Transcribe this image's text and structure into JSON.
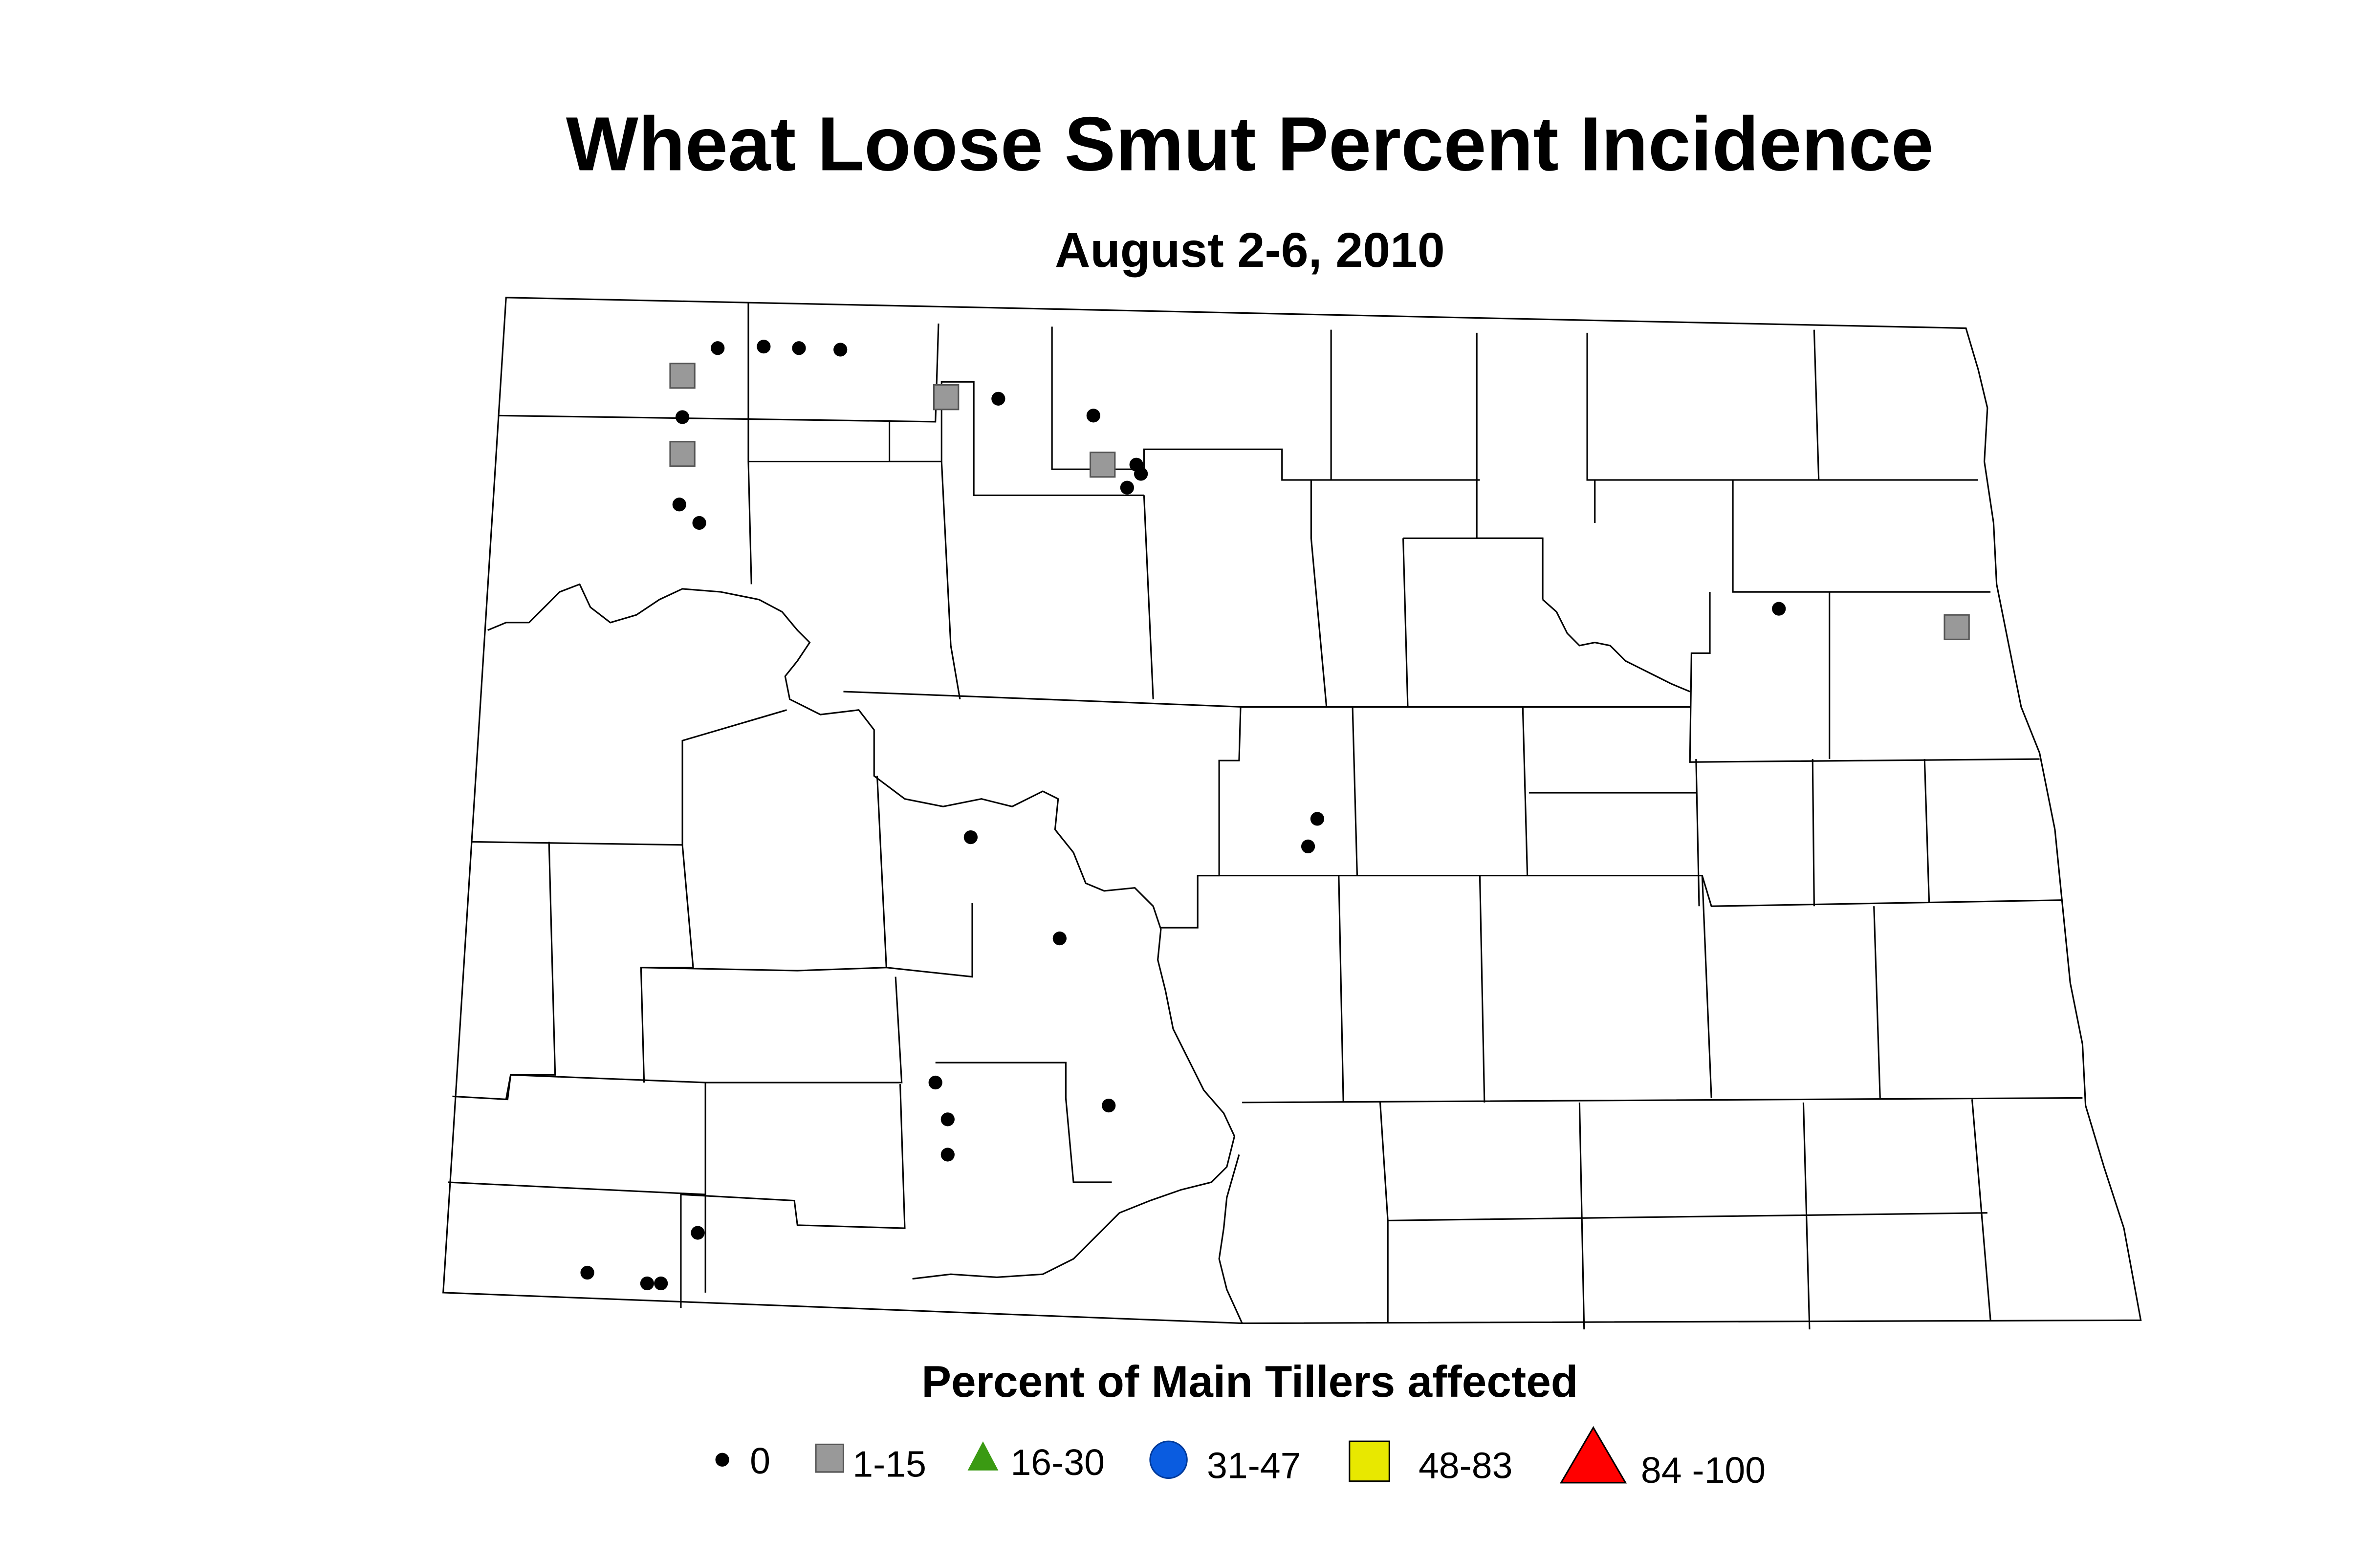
{
  "title": "Wheat Loose Smut Percent Incidence",
  "subtitle": "August 2-6, 2010",
  "legend": {
    "title": "Percent of Main Tillers affected",
    "items": [
      {
        "label": "0"
      },
      {
        "label": "1-15"
      },
      {
        "label": "16-30"
      },
      {
        "label": "31-47"
      },
      {
        "label": "48-83"
      },
      {
        "label": "84 -100"
      }
    ]
  }
}
